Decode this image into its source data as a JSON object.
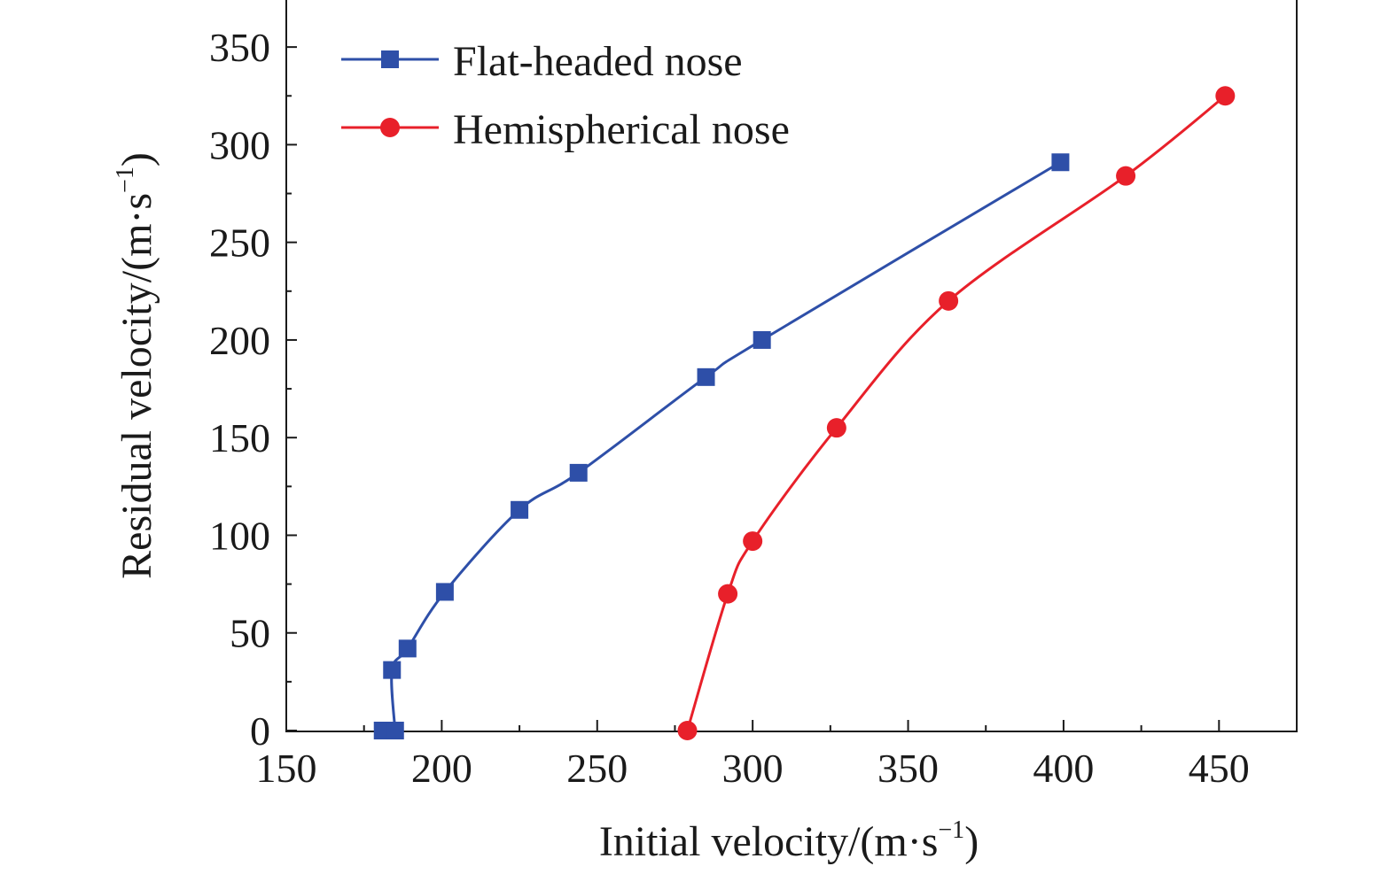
{
  "chart_data": {
    "type": "line",
    "xlabel": "Initial velocity/(m·s",
    "ylabel": "Residual velocity/(m·s",
    "axis_unit_exponent": "−1",
    "xlim": [
      150,
      475
    ],
    "ylim": [
      0,
      375
    ],
    "x_ticks": [
      150,
      200,
      250,
      300,
      350,
      400,
      450
    ],
    "y_ticks": [
      0,
      50,
      100,
      150,
      200,
      250,
      300,
      350
    ],
    "grid": false,
    "legend_position": "top-left",
    "series": [
      {
        "name": "Flat-headed nose",
        "color": "#2e4fa8",
        "marker": "square",
        "x": [
          181,
          185,
          184,
          189,
          201,
          225,
          244,
          285,
          303,
          399
        ],
        "y": [
          0,
          0,
          31,
          42,
          71,
          113,
          132,
          181,
          200,
          291
        ]
      },
      {
        "name": "Hemispherical nose",
        "color": "#e8202a",
        "marker": "circle",
        "x": [
          279,
          292,
          300,
          327,
          363,
          420,
          452
        ],
        "y": [
          0,
          70,
          97,
          155,
          220,
          284,
          325
        ]
      }
    ]
  }
}
